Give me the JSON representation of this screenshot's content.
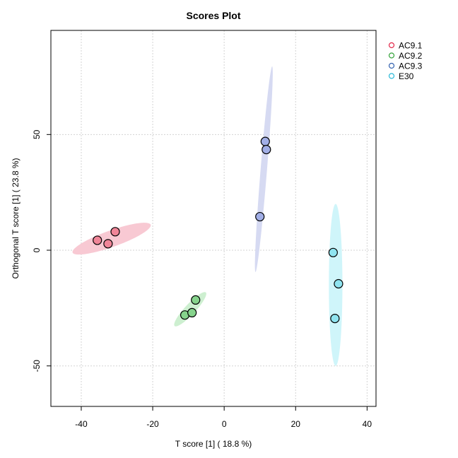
{
  "chart_data": {
    "type": "scatter",
    "title": "Scores Plot",
    "xlabel": "T score [1] ( 18.8 %)",
    "ylabel": "Orthogonal T score [1] ( 23.8 %)",
    "xlim": [
      -48.5,
      42.5
    ],
    "ylim": [
      -67.5,
      95
    ],
    "x_ticks": [
      -40,
      -20,
      0,
      20,
      40
    ],
    "y_ticks": [
      -50,
      0,
      50
    ],
    "grid": true,
    "legend": "top-right-outside",
    "series": [
      {
        "name": "AC9.1",
        "color": "#E2284A",
        "fill": "#F08598",
        "ellipse_fill": "#F8C9D3",
        "points": [
          [
            -35.5,
            4.3
          ],
          [
            -32.5,
            2.8
          ],
          [
            -30.5,
            8.0
          ]
        ],
        "ellipse": {
          "cx": -31.5,
          "cy": 5.0,
          "a": 12.5,
          "b": 3.3,
          "angle": 30
        }
      },
      {
        "name": "AC9.2",
        "color": "#34A33A",
        "fill": "#86D38C",
        "ellipse_fill": "#CDEFD0",
        "points": [
          [
            -11.0,
            -28.0
          ],
          [
            -9.0,
            -27.0
          ],
          [
            -8.0,
            -21.5
          ]
        ],
        "ellipse": {
          "cx": -9.5,
          "cy": -25.5,
          "a": 8.5,
          "b": 1.7,
          "angle": 60
        }
      },
      {
        "name": "AC9.3",
        "color": "#3563B0",
        "fill": "#A1AEE6",
        "ellipse_fill": "#D6DAF2",
        "points": [
          [
            11.5,
            47.0
          ],
          [
            11.8,
            43.5
          ],
          [
            10.0,
            14.5
          ]
        ],
        "ellipse": {
          "cx": 11.1,
          "cy": 35.0,
          "a": 44.5,
          "b": 0.9,
          "angle": 87
        }
      },
      {
        "name": "E30",
        "color": "#29B9D8",
        "fill": "#8FE4F0",
        "ellipse_fill": "#CFF5FA",
        "points": [
          [
            30.5,
            -1.0
          ],
          [
            32.0,
            -14.5
          ],
          [
            31.0,
            -29.5
          ]
        ],
        "ellipse": {
          "cx": 31.2,
          "cy": -15.0,
          "a": 35.0,
          "b": 1.9,
          "angle": 90
        }
      }
    ]
  }
}
